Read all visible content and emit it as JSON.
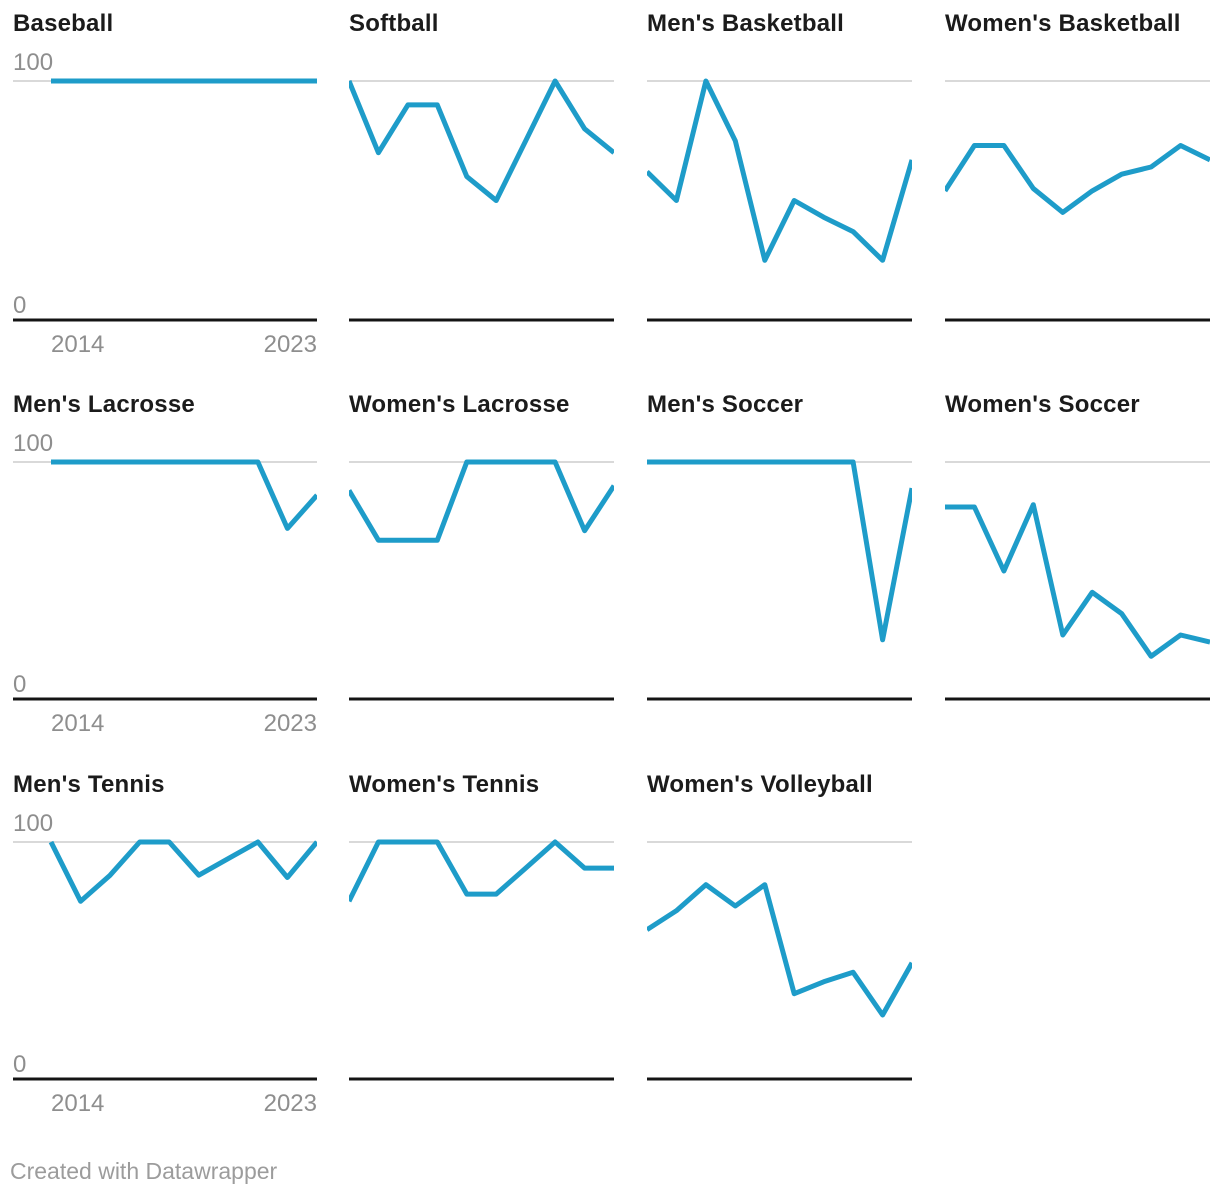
{
  "chart_data": {
    "type": "line",
    "x": [
      2014,
      2015,
      2016,
      2017,
      2018,
      2019,
      2020,
      2021,
      2022,
      2023
    ],
    "x_tick_labels": [
      "2014",
      "2023"
    ],
    "y_axis": {
      "top_label": "100",
      "bottom_label": "0"
    },
    "ylim": [
      0,
      100
    ],
    "line_color": "#1e9cc9",
    "gridline_color": "#d9d9d9",
    "axis_color": "#141414",
    "layout_hint": "small multiples, 4 columns x 3 rows, only top gridline (100) and baseline (0) shown, axis labels only on first column",
    "panels": [
      {
        "title": "Baseball",
        "values": [
          100,
          100,
          100,
          100,
          100,
          100,
          100,
          100,
          100,
          100
        ]
      },
      {
        "title": "Softball",
        "values": [
          100,
          70,
          90,
          90,
          60,
          50,
          75,
          100,
          80,
          70
        ]
      },
      {
        "title": "Men's Basketball",
        "values": [
          62,
          50,
          100,
          75,
          25,
          50,
          43,
          37,
          25,
          67
        ]
      },
      {
        "title": "Women's Basketball",
        "values": [
          54,
          73,
          73,
          55,
          45,
          54,
          61,
          64,
          73,
          67
        ]
      },
      {
        "title": "Men's Lacrosse",
        "values": [
          100,
          100,
          100,
          100,
          100,
          100,
          100,
          100,
          72,
          86
        ]
      },
      {
        "title": "Women's Lacrosse",
        "values": [
          88,
          67,
          67,
          67,
          100,
          100,
          100,
          100,
          71,
          90
        ]
      },
      {
        "title": "Men's Soccer",
        "values": [
          100,
          100,
          100,
          100,
          100,
          100,
          100,
          100,
          25,
          89
        ]
      },
      {
        "title": "Women's Soccer",
        "values": [
          81,
          81,
          54,
          82,
          27,
          45,
          36,
          18,
          27,
          24
        ]
      },
      {
        "title": "Men's Tennis",
        "values": [
          100,
          75,
          86,
          100,
          100,
          86,
          93,
          100,
          85,
          100
        ]
      },
      {
        "title": "Women's Tennis",
        "values": [
          75,
          100,
          100,
          100,
          78,
          78,
          89,
          100,
          89,
          89
        ]
      },
      {
        "title": "Women's Volleyball",
        "values": [
          63,
          71,
          82,
          73,
          82,
          36,
          41,
          45,
          27,
          49
        ]
      }
    ]
  },
  "footer": {
    "credit": "Created with Datawrapper"
  }
}
